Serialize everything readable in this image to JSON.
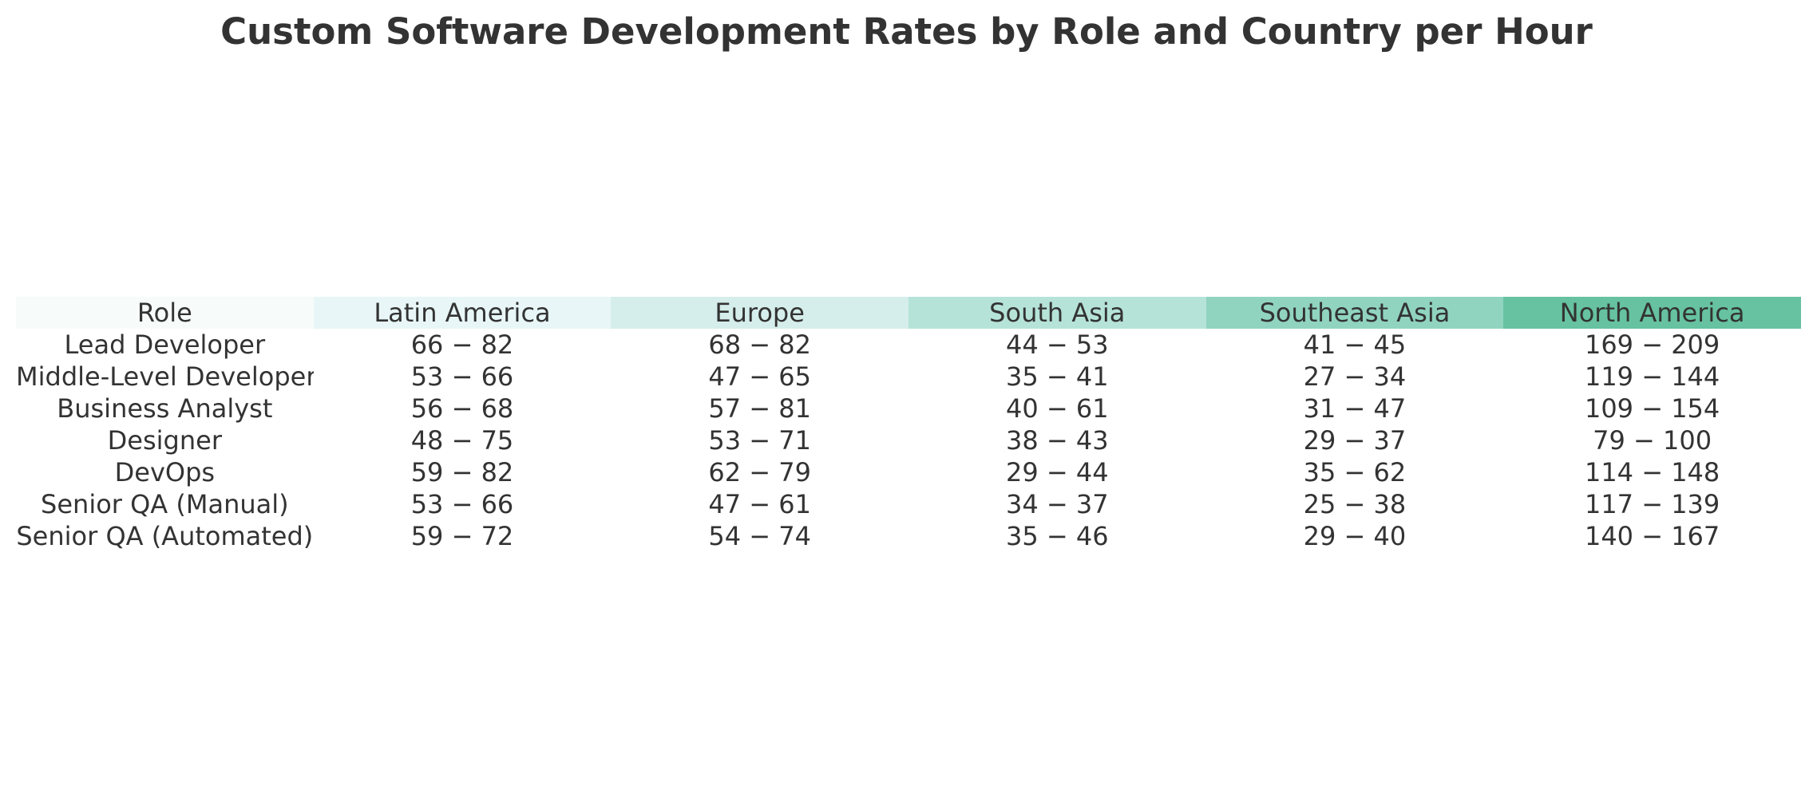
{
  "chart_data": {
    "type": "table",
    "title": "Custom Software Development Rates by Role and Country per Hour",
    "columns": [
      "Role",
      "Latin America",
      "Europe",
      "South Asia",
      "Southeast Asia",
      "North America"
    ],
    "header_colors": [
      "#f7fcfb",
      "#e8f6f7",
      "#d5eeeb",
      "#b6e3d8",
      "#90d4c0",
      "#66c2a0"
    ],
    "rows": [
      [
        "Lead Developer",
        "66 − 82",
        "68 − 82",
        "44 − 53",
        "41 − 45",
        "169 − 209"
      ],
      [
        "Middle-Level Developer",
        "53 − 66",
        "47 − 65",
        "35 − 41",
        "27 − 34",
        "119 − 144"
      ],
      [
        "Business Analyst",
        "56 − 68",
        "57 − 81",
        "40 − 61",
        "31 − 47",
        "109 − 154"
      ],
      [
        "Designer",
        "48 − 75",
        "53 − 71",
        "38 − 43",
        "29 − 37",
        "79 − 100"
      ],
      [
        "DevOps",
        "59 − 82",
        "62 − 79",
        "29 − 44",
        "35 − 62",
        "114 − 148"
      ],
      [
        "Senior QA (Manual)",
        "53 − 66",
        "47 − 61",
        "34 − 37",
        "25 − 38",
        "117 − 139"
      ],
      [
        "Senior QA (Automated)",
        "59 − 72",
        "54 − 74",
        "35 − 46",
        "29 − 40",
        "140 − 167"
      ]
    ]
  }
}
